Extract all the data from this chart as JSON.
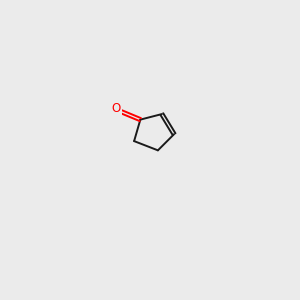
{
  "bg": "#ebebeb",
  "bc": "#1a1a1a",
  "red": "#ff0000",
  "blue": "#0000ff",
  "magenta": "#cc00cc",
  "teal": "#008080",
  "figsize": [
    3.0,
    3.0
  ],
  "dpi": 100
}
